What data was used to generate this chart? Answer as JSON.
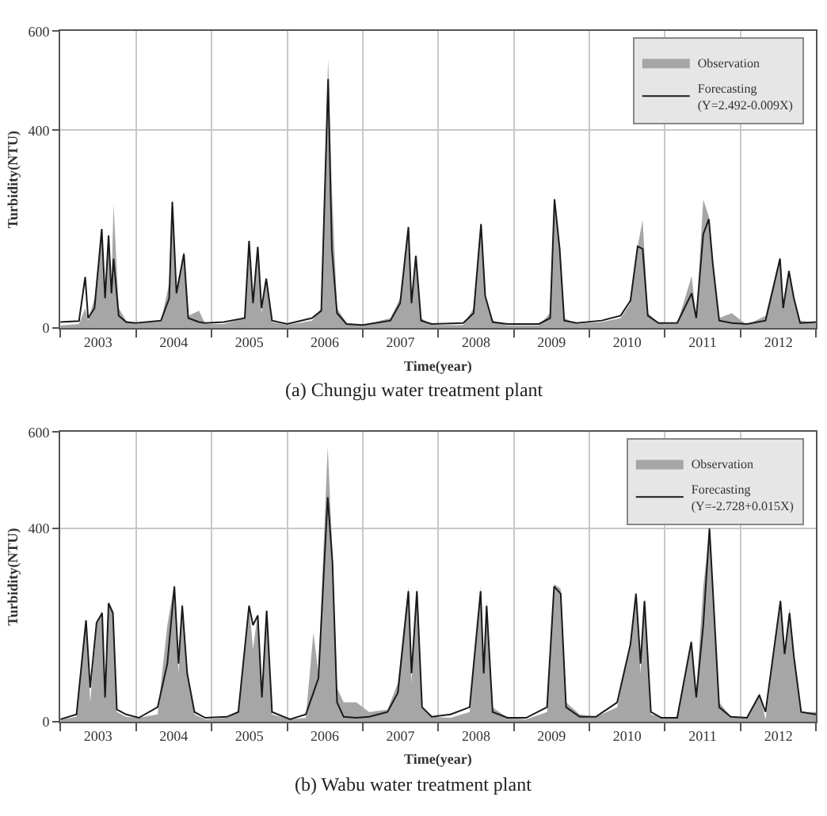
{
  "chart_data": [
    {
      "type": "area",
      "title": "(a) Chungju water treatment plant",
      "xlabel": "Time(year)",
      "ylabel": "Turbidity(NTU)",
      "grid": true,
      "legend": "top right",
      "xlim": [
        "2003-01-01",
        "2013-01-01"
      ],
      "ylim": [
        0,
        600
      ],
      "yticks": [
        0,
        400,
        600
      ],
      "xticks": [
        {
          "value": "2003-01-01",
          "label": null
        },
        {
          "value": "2003-07-02",
          "label": "2003"
        },
        {
          "value": "2004-01-01",
          "label": null
        },
        {
          "value": "2004-07-02",
          "label": "2004"
        },
        {
          "value": "2005-01-01",
          "label": null
        },
        {
          "value": "2005-07-02",
          "label": "2005"
        },
        {
          "value": "2006-01-01",
          "label": null
        },
        {
          "value": "2006-07-02",
          "label": "2006"
        },
        {
          "value": "2007-01-01",
          "label": null
        },
        {
          "value": "2007-07-02",
          "label": "2007"
        },
        {
          "value": "2008-01-01",
          "label": null
        },
        {
          "value": "2008-07-02",
          "label": "2008"
        },
        {
          "value": "2009-01-01",
          "label": null
        },
        {
          "value": "2009-07-02",
          "label": "2009"
        },
        {
          "value": "2010-01-01",
          "label": null
        },
        {
          "value": "2010-07-02",
          "label": "2010"
        },
        {
          "value": "2011-01-01",
          "label": null
        },
        {
          "value": "2011-07-02",
          "label": "2011"
        },
        {
          "value": "2012-01-01",
          "label": null
        },
        {
          "value": "2012-07-02",
          "label": "2012"
        },
        {
          "value": "2013-01-01",
          "label": null
        }
      ],
      "x": [
        "2003-01-01",
        "2003-04-01",
        "2003-05-01",
        "2003-05-15",
        "2003-06-15",
        "2003-07-20",
        "2003-08-05",
        "2003-08-22",
        "2003-09-05",
        "2003-09-15",
        "2003-10-10",
        "2003-11-15",
        "2004-01-01",
        "2004-05-01",
        "2004-06-10",
        "2004-06-25",
        "2004-07-15",
        "2004-08-20",
        "2004-09-10",
        "2004-11-01",
        "2004-12-01",
        "2005-03-01",
        "2005-06-10",
        "2005-07-01",
        "2005-07-20",
        "2005-08-12",
        "2005-08-30",
        "2005-09-22",
        "2005-10-20",
        "2006-01-01",
        "2006-05-01",
        "2006-06-15",
        "2006-07-18",
        "2006-08-05",
        "2006-08-30",
        "2006-10-15",
        "2007-01-01",
        "2007-05-15",
        "2007-07-01",
        "2007-08-10",
        "2007-08-25",
        "2007-09-15",
        "2007-10-10",
        "2007-12-01",
        "2008-05-01",
        "2008-06-20",
        "2008-07-26",
        "2008-08-15",
        "2008-09-20",
        "2008-12-01",
        "2009-05-01",
        "2009-06-25",
        "2009-07-16",
        "2009-08-10",
        "2009-09-01",
        "2009-11-01",
        "2010-03-01",
        "2010-06-01",
        "2010-07-18",
        "2010-08-22",
        "2010-09-15",
        "2010-10-10",
        "2010-12-01",
        "2011-03-01",
        "2011-05-10",
        "2011-06-01",
        "2011-07-05",
        "2011-08-01",
        "2011-08-20",
        "2011-09-20",
        "2011-11-20",
        "2012-02-01",
        "2012-05-01",
        "2012-07-10",
        "2012-07-25",
        "2012-08-22",
        "2012-09-15",
        "2012-10-15",
        "2012-12-31"
      ],
      "series": [
        {
          "name": "Observation",
          "color": "#a6a6a6",
          "values": [
            5,
            8,
            40,
            15,
            60,
            202,
            80,
            190,
            90,
            250,
            40,
            15,
            8,
            15,
            90,
            262,
            80,
            155,
            25,
            35,
            8,
            8,
            20,
            175,
            60,
            165,
            30,
            100,
            12,
            6,
            15,
            40,
            545,
            280,
            40,
            10,
            5,
            20,
            60,
            200,
            60,
            146,
            20,
            6,
            6,
            40,
            212,
            65,
            15,
            5,
            5,
            30,
            266,
            165,
            20,
            8,
            12,
            20,
            50,
            165,
            218,
            30,
            10,
            8,
            105,
            20,
            260,
            225,
            135,
            20,
            30,
            6,
            25,
            145,
            50,
            120,
            65,
            15,
            10
          ]
        },
        {
          "name": "Forecasting\n(Y=2.492-0.009X)",
          "type": "line",
          "color": "#1a1a1a",
          "values": [
            12,
            14,
            103,
            20,
            40,
            200,
            60,
            187,
            70,
            140,
            25,
            12,
            10,
            15,
            60,
            255,
            70,
            150,
            20,
            12,
            10,
            12,
            20,
            176,
            50,
            164,
            40,
            100,
            15,
            8,
            20,
            35,
            503,
            160,
            30,
            8,
            6,
            15,
            50,
            204,
            50,
            146,
            15,
            8,
            10,
            30,
            210,
            65,
            12,
            8,
            8,
            20,
            260,
            160,
            15,
            10,
            15,
            25,
            55,
            165,
            160,
            25,
            10,
            10,
            70,
            20,
            190,
            220,
            130,
            15,
            10,
            8,
            15,
            140,
            40,
            115,
            60,
            10,
            12
          ]
        }
      ]
    },
    {
      "type": "area",
      "title": "(b) Wabu water treatment plant",
      "xlabel": "Time(year)",
      "ylabel": "Turbidity(NTU)",
      "grid": true,
      "legend": "top right",
      "xlim": [
        "2003-01-01",
        "2013-01-01"
      ],
      "ylim": [
        0,
        600
      ],
      "yticks": [
        0,
        400,
        600
      ],
      "xticks": [
        {
          "value": "2003-01-01",
          "label": null
        },
        {
          "value": "2003-07-02",
          "label": "2003"
        },
        {
          "value": "2004-01-01",
          "label": null
        },
        {
          "value": "2004-07-02",
          "label": "2004"
        },
        {
          "value": "2005-01-01",
          "label": null
        },
        {
          "value": "2005-07-02",
          "label": "2005"
        },
        {
          "value": "2006-01-01",
          "label": null
        },
        {
          "value": "2006-07-02",
          "label": "2006"
        },
        {
          "value": "2007-01-01",
          "label": null
        },
        {
          "value": "2007-07-02",
          "label": "2007"
        },
        {
          "value": "2008-01-01",
          "label": null
        },
        {
          "value": "2008-07-02",
          "label": "2008"
        },
        {
          "value": "2009-01-01",
          "label": null
        },
        {
          "value": "2009-07-02",
          "label": "2009"
        },
        {
          "value": "2010-01-01",
          "label": null
        },
        {
          "value": "2010-07-02",
          "label": "2010"
        },
        {
          "value": "2011-01-01",
          "label": null
        },
        {
          "value": "2011-07-02",
          "label": "2011"
        },
        {
          "value": "2012-01-01",
          "label": null
        },
        {
          "value": "2012-07-02",
          "label": "2012"
        },
        {
          "value": "2013-01-01",
          "label": null
        }
      ],
      "x": [
        "2003-01-01",
        "2003-03-20",
        "2003-05-05",
        "2003-05-25",
        "2003-06-25",
        "2003-07-22",
        "2003-08-05",
        "2003-08-22",
        "2003-09-12",
        "2003-10-01",
        "2003-11-15",
        "2004-01-15",
        "2004-04-15",
        "2004-06-01",
        "2004-07-05",
        "2004-07-25",
        "2004-08-12",
        "2004-09-05",
        "2004-10-10",
        "2004-12-01",
        "2005-03-15",
        "2005-05-10",
        "2005-07-01",
        "2005-07-20",
        "2005-08-12",
        "2005-09-01",
        "2005-09-24",
        "2005-10-20",
        "2006-01-15",
        "2006-04-01",
        "2006-05-08",
        "2006-06-01",
        "2006-07-16",
        "2006-08-08",
        "2006-08-30",
        "2006-10-01",
        "2006-12-01",
        "2007-02-01",
        "2007-05-01",
        "2007-06-20",
        "2007-08-10",
        "2007-08-25",
        "2007-09-20",
        "2007-10-15",
        "2007-12-01",
        "2008-03-01",
        "2008-06-01",
        "2008-07-24",
        "2008-08-08",
        "2008-08-22",
        "2008-09-20",
        "2008-12-01",
        "2009-03-01",
        "2009-06-10",
        "2009-07-14",
        "2009-08-15",
        "2009-09-10",
        "2009-11-15",
        "2010-02-01",
        "2010-05-15",
        "2010-07-18",
        "2010-08-14",
        "2010-09-05",
        "2010-09-24",
        "2010-10-25",
        "2010-12-15",
        "2011-03-01",
        "2011-05-08",
        "2011-06-01",
        "2011-07-05",
        "2011-08-04",
        "2011-08-22",
        "2011-09-20",
        "2011-11-15",
        "2012-02-01",
        "2012-04-01",
        "2012-05-01",
        "2012-07-12",
        "2012-08-01",
        "2012-08-25",
        "2012-09-15",
        "2012-10-20",
        "2012-12-31"
      ],
      "series": [
        {
          "name": "Observation",
          "color": "#a6a6a6",
          "values": [
            5,
            10,
            205,
            40,
            200,
            230,
            60,
            250,
            230,
            20,
            10,
            8,
            15,
            200,
            285,
            100,
            250,
            105,
            15,
            5,
            8,
            20,
            245,
            150,
            225,
            60,
            230,
            15,
            5,
            8,
            185,
            100,
            570,
            350,
            70,
            40,
            40,
            20,
            25,
            80,
            280,
            80,
            280,
            30,
            10,
            8,
            20,
            280,
            120,
            250,
            30,
            8,
            5,
            20,
            285,
            275,
            40,
            15,
            10,
            30,
            165,
            270,
            100,
            255,
            15,
            10,
            8,
            170,
            60,
            280,
            395,
            265,
            40,
            10,
            8,
            60,
            5,
            255,
            150,
            235,
            140,
            20,
            20
          ]
        },
        {
          "name": "Forecasting\n(Y=-2.728+0.015X)",
          "type": "line",
          "color": "#1a1a1a",
          "values": [
            5,
            15,
            210,
            70,
            205,
            225,
            50,
            245,
            225,
            25,
            15,
            8,
            30,
            120,
            280,
            120,
            240,
            100,
            20,
            8,
            10,
            20,
            240,
            200,
            220,
            50,
            230,
            20,
            5,
            15,
            60,
            90,
            465,
            330,
            40,
            10,
            8,
            10,
            20,
            60,
            270,
            100,
            270,
            30,
            10,
            15,
            30,
            270,
            100,
            240,
            20,
            8,
            8,
            30,
            280,
            265,
            30,
            10,
            10,
            40,
            160,
            265,
            120,
            250,
            20,
            8,
            8,
            165,
            50,
            200,
            400,
            260,
            30,
            10,
            8,
            55,
            20,
            250,
            140,
            225,
            135,
            20,
            15
          ]
        }
      ]
    }
  ]
}
